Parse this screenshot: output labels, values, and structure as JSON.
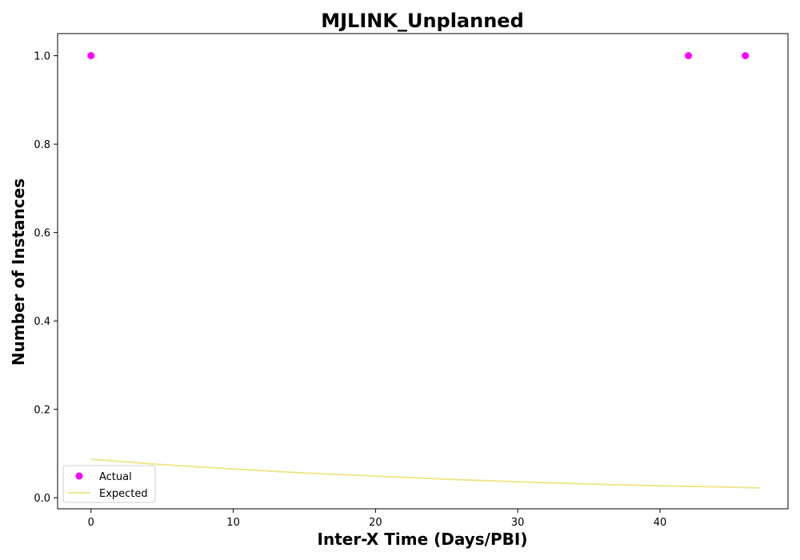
{
  "chart_data": {
    "type": "scatter",
    "title": "MJLINK_Unplanned",
    "xlabel": "Inter-X Time (Days/PBI)",
    "ylabel": "Number of Instances",
    "xlim": [
      -2.35,
      49.0
    ],
    "ylim": [
      -0.025,
      1.05
    ],
    "xticks": [
      0,
      10,
      20,
      30,
      40
    ],
    "yticks": [
      0.0,
      0.2,
      0.4,
      0.6,
      0.8,
      1.0
    ],
    "xtick_labels": [
      "0",
      "10",
      "20",
      "30",
      "40"
    ],
    "ytick_labels": [
      "0.0",
      "0.2",
      "0.4",
      "0.6",
      "0.8",
      "1.0"
    ],
    "grid": false,
    "legend_position": "lower-left",
    "series": [
      {
        "name": "Actual",
        "kind": "scatter",
        "color": "#ff00ff",
        "x": [
          0,
          42,
          46
        ],
        "y": [
          1.0,
          1.0,
          1.0
        ]
      },
      {
        "name": "Expected",
        "kind": "line",
        "color": "#f0e68c",
        "x": [
          0,
          5,
          10,
          15,
          20,
          25,
          30,
          35,
          40,
          45,
          47
        ],
        "y": [
          0.087,
          0.075,
          0.065,
          0.056,
          0.049,
          0.042,
          0.036,
          0.031,
          0.027,
          0.024,
          0.022
        ]
      }
    ]
  }
}
